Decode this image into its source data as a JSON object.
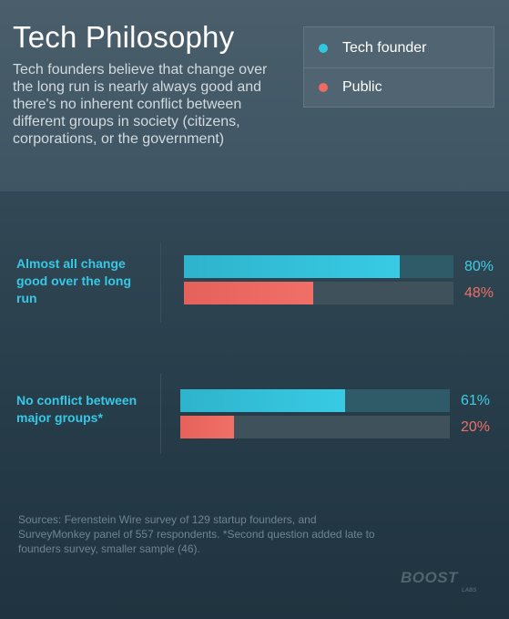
{
  "header": {
    "title": "Tech Philosophy",
    "subtitle": "Tech founders believe that change over the long run is nearly always good and there's no inherent conflict between different groups in society (citizens, corporations, or the government)"
  },
  "legend": {
    "items": [
      {
        "label": "Tech founder",
        "color": "#33c6e0"
      },
      {
        "label": "Public",
        "color": "#ec6b63"
      }
    ]
  },
  "chart_data": {
    "type": "bar",
    "orientation": "horizontal",
    "categories": [
      "Almost all change good over the long run",
      "No conflict between major groups*"
    ],
    "series": [
      {
        "name": "Tech founder",
        "values": [
          80,
          61
        ],
        "labels": [
          "80%",
          "61%"
        ],
        "color": "#33c6e0"
      },
      {
        "name": "Public",
        "values": [
          48,
          20
        ],
        "labels": [
          "48%",
          "20%"
        ],
        "color": "#ec6b63"
      }
    ],
    "xlim": [
      0,
      100
    ],
    "grid": false,
    "legend": "top-right"
  },
  "footer": {
    "source": "Sources:  Ferenstein Wire survey of 129 startup founders, and SurveyMonkey panel of 557 respondents. *Second question added late to founders survey, smaller sample (46).",
    "logo": "BOOST",
    "logo_sub": "LABS"
  }
}
